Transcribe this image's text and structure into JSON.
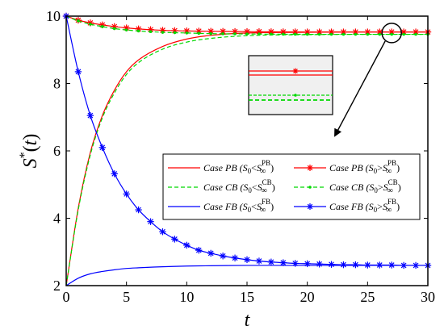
{
  "chart_data": {
    "type": "line",
    "xlabel": "t",
    "ylabel": "S*(t)",
    "xlim": [
      0,
      30
    ],
    "ylim": [
      2,
      10
    ],
    "xticks": [
      0,
      5,
      10,
      15,
      20,
      25,
      30
    ],
    "yticks": [
      2,
      4,
      6,
      8,
      10
    ],
    "grid": false,
    "legend_position": "center-right",
    "series": [
      {
        "name": "Case PB (S0<S∞PB)",
        "case": "PB",
        "rel": "<",
        "sup": "PB",
        "color": "#ff0000",
        "style": "solid",
        "marker": "none",
        "x": [
          0,
          1,
          2,
          3,
          4,
          5,
          6,
          8,
          10,
          12,
          15,
          20,
          25,
          30
        ],
        "y": [
          2.0,
          4.3,
          5.95,
          7.05,
          7.8,
          8.35,
          8.7,
          9.1,
          9.32,
          9.43,
          9.5,
          9.52,
          9.53,
          9.53
        ]
      },
      {
        "name": "Case PB (S0>S∞PB)",
        "case": "PB",
        "rel": ">",
        "sup": "PB",
        "color": "#ff0000",
        "style": "solid",
        "marker": "star",
        "x": [
          0,
          1,
          2,
          3,
          4,
          5,
          6,
          8,
          10,
          12,
          15,
          20,
          25,
          30
        ],
        "y": [
          10.0,
          9.88,
          9.8,
          9.74,
          9.69,
          9.65,
          9.62,
          9.58,
          9.56,
          9.55,
          9.54,
          9.53,
          9.53,
          9.53
        ]
      },
      {
        "name": "Case CB (S0<S∞CB)",
        "case": "CB",
        "rel": "<",
        "sup": "CB",
        "color": "#00d800",
        "style": "dashed",
        "marker": "none",
        "x": [
          0,
          1,
          2,
          3,
          4,
          5,
          6,
          8,
          10,
          12,
          15,
          20,
          25,
          30
        ],
        "y": [
          2.0,
          4.25,
          5.88,
          6.98,
          7.72,
          8.27,
          8.62,
          9.02,
          9.23,
          9.34,
          9.42,
          9.45,
          9.46,
          9.46
        ]
      },
      {
        "name": "Case CB (S0>S∞CB)",
        "case": "CB",
        "rel": ">",
        "sup": "CB",
        "color": "#00d800",
        "style": "dashed",
        "marker": "star",
        "x": [
          0,
          1,
          2,
          3,
          4,
          5,
          6,
          8,
          10,
          12,
          15,
          20,
          25,
          30
        ],
        "y": [
          10.0,
          9.86,
          9.76,
          9.69,
          9.63,
          9.59,
          9.56,
          9.52,
          9.5,
          9.48,
          9.47,
          9.46,
          9.46,
          9.46
        ]
      },
      {
        "name": "Case FB (S0<S∞FB)",
        "case": "FB",
        "rel": "<",
        "sup": "FB",
        "color": "#0000ff",
        "style": "solid",
        "marker": "none",
        "x": [
          0,
          1,
          2,
          3,
          4,
          5,
          6,
          8,
          10,
          12,
          15,
          20,
          25,
          30
        ],
        "y": [
          2.0,
          2.22,
          2.35,
          2.42,
          2.47,
          2.51,
          2.53,
          2.56,
          2.58,
          2.59,
          2.6,
          2.6,
          2.6,
          2.6
        ]
      },
      {
        "name": "Case FB (S0>S∞FB)",
        "case": "FB",
        "rel": ">",
        "sup": "FB",
        "color": "#0000ff",
        "style": "solid",
        "marker": "star",
        "x": [
          0,
          1,
          2,
          3,
          4,
          5,
          6,
          7,
          8,
          9,
          10,
          11,
          12,
          13,
          14,
          15,
          16,
          17,
          18,
          19,
          20,
          21,
          22,
          23,
          24,
          25,
          26,
          27,
          28,
          29,
          30
        ],
        "y": [
          10.0,
          8.35,
          7.05,
          6.1,
          5.32,
          4.72,
          4.25,
          3.9,
          3.6,
          3.38,
          3.2,
          3.05,
          2.96,
          2.88,
          2.82,
          2.77,
          2.73,
          2.7,
          2.68,
          2.66,
          2.65,
          2.64,
          2.63,
          2.62,
          2.62,
          2.61,
          2.61,
          2.61,
          2.6,
          2.6,
          2.6
        ]
      }
    ],
    "annotations": [
      {
        "type": "zoom-inset",
        "target_x": 27,
        "target_y": 9.5
      }
    ]
  }
}
